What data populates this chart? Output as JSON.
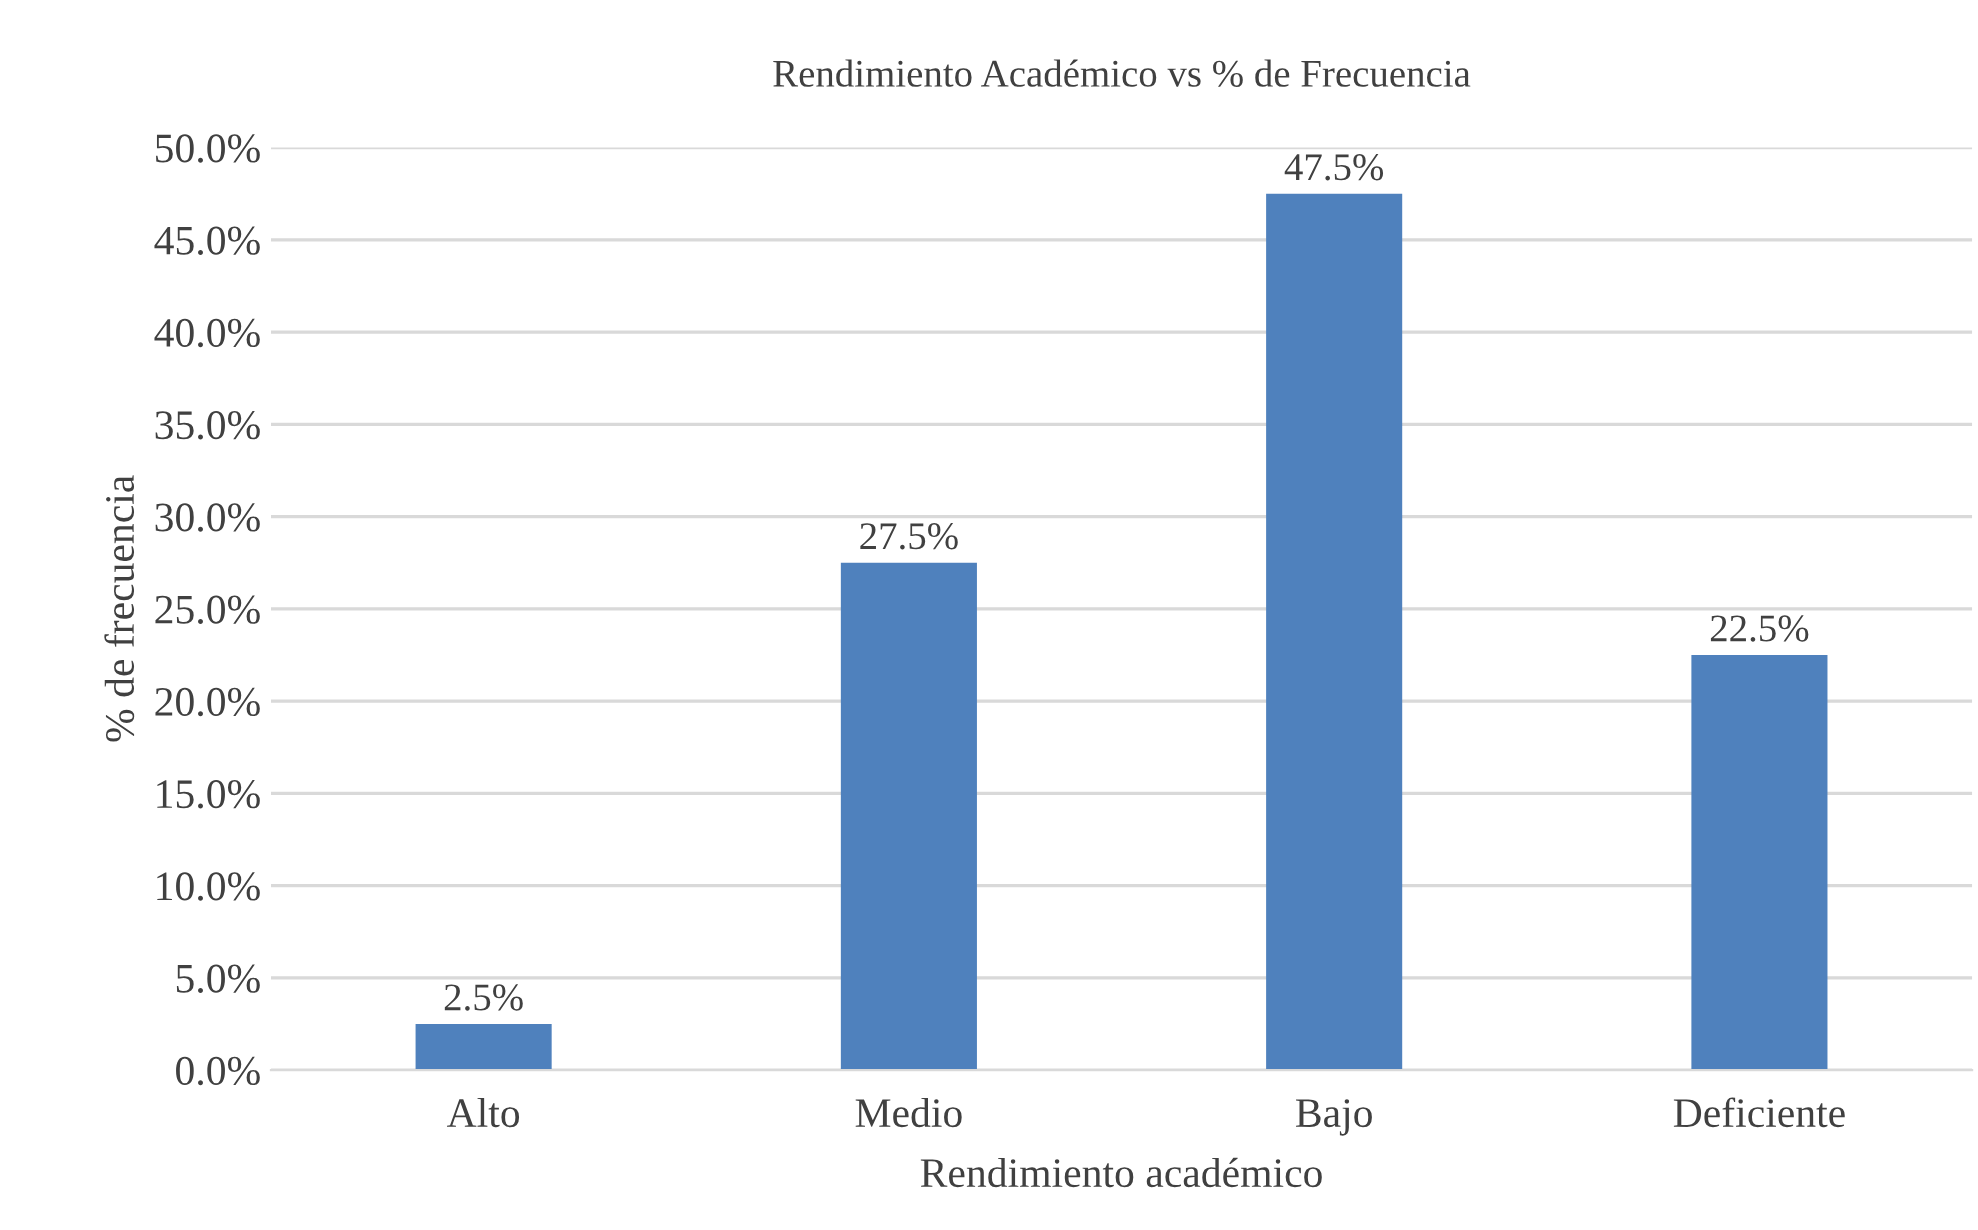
{
  "chart_data": {
    "type": "bar",
    "title": "Rendimiento Académico vs % de Frecuencia",
    "xlabel": "Rendimiento académico",
    "ylabel": "% de frecuencia",
    "categories": [
      "Alto",
      "Medio",
      "Bajo",
      "Deficiente"
    ],
    "values": [
      2.5,
      27.5,
      47.5,
      22.5
    ],
    "color": "#4f81bd",
    "value_labels": [
      "2.5%",
      "27.5%",
      "47.5%",
      "22.5%"
    ],
    "ylim": [
      0,
      50
    ],
    "yticks": [
      {
        "value": 0,
        "label": "0.0%"
      },
      {
        "value": 5,
        "label": "5.0%"
      },
      {
        "value": 10,
        "label": "10.0%"
      },
      {
        "value": 15,
        "label": "15.0%"
      },
      {
        "value": 20,
        "label": "20.0%"
      },
      {
        "value": 25,
        "label": "25.0%"
      },
      {
        "value": 30,
        "label": "30.0%"
      },
      {
        "value": 35,
        "label": "35.0%"
      },
      {
        "value": 40,
        "label": "40.0%"
      },
      {
        "value": 45,
        "label": "45.0%"
      },
      {
        "value": 50,
        "label": "50.0%"
      }
    ],
    "grid": "y",
    "legend": false
  }
}
